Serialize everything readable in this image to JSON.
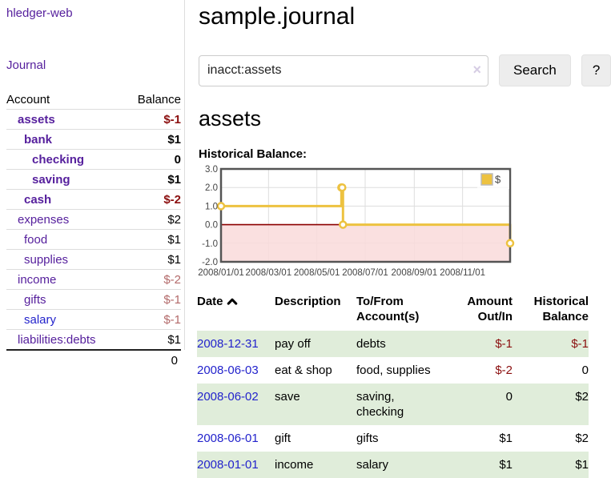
{
  "app_title": "hledger-web",
  "sidebar": {
    "journal_link": "Journal",
    "accounts": {
      "header_account": "Account",
      "header_balance": "Balance",
      "rows": [
        {
          "name": "assets",
          "balance": "$-1"
        },
        {
          "name": "bank",
          "balance": "$1"
        },
        {
          "name": "checking",
          "balance": "0"
        },
        {
          "name": "saving",
          "balance": "$1"
        },
        {
          "name": "cash",
          "balance": "$-2"
        },
        {
          "name": "expenses",
          "balance": "$2"
        },
        {
          "name": "food",
          "balance": "$1"
        },
        {
          "name": "supplies",
          "balance": "$1"
        },
        {
          "name": "income",
          "balance": "$-2"
        },
        {
          "name": "gifts",
          "balance": "$-1"
        },
        {
          "name": "salary",
          "balance": "$-1"
        },
        {
          "name": "liabilities:debts",
          "balance": "$1"
        }
      ],
      "total": "0"
    }
  },
  "main": {
    "title": "sample.journal",
    "search": {
      "value": "inacct:assets",
      "clear_icon": "×",
      "search_button": "Search",
      "help_button": "?"
    },
    "account_heading": "assets"
  },
  "chart_data": {
    "type": "line",
    "step": true,
    "title": "Historical Balance:",
    "x": [
      "2008/01/01",
      "2008/06/01",
      "2008/06/02",
      "2008/06/03",
      "2008/12/31"
    ],
    "series": [
      {
        "name": "$",
        "color": "#edc240",
        "values": [
          1,
          2,
          2,
          0,
          -1
        ]
      }
    ],
    "x_ticks": [
      "2008/01/01",
      "2008/03/01",
      "2008/05/01",
      "2008/07/01",
      "2008/09/01",
      "2008/11/01"
    ],
    "y_ticks": [
      3.0,
      2.0,
      1.0,
      0.0,
      -1.0,
      -2.0
    ],
    "ylim": [
      -2,
      3
    ],
    "grid": true,
    "legend_position": "top-right",
    "negative_region_color": "#f9dbdb",
    "zero_line_color": "#8b0000",
    "border_color": "#545454",
    "grid_color": "#dddddd",
    "tick_label_color": "#444444"
  },
  "register": {
    "headers": {
      "date": "Date",
      "description": "Description",
      "account_line1": "To/From",
      "account_line2": "Account(s)",
      "amount_line1": "Amount",
      "amount_line2": "Out/In",
      "balance_line1": "Historical",
      "balance_line2": "Balance"
    },
    "rows": [
      {
        "date": "2008-12-31",
        "description": "pay off",
        "account": "debts",
        "amount": "$-1",
        "balance": "$-1"
      },
      {
        "date": "2008-06-03",
        "description": "eat & shop",
        "account": "food, supplies",
        "amount": "$-2",
        "balance": "0"
      },
      {
        "date": "2008-06-02",
        "description": "save",
        "account": "saving, checking",
        "amount": "0",
        "balance": "$2"
      },
      {
        "date": "2008-06-01",
        "description": "gift",
        "account": "gifts",
        "amount": "$1",
        "balance": "$2"
      },
      {
        "date": "2008-01-01",
        "description": "income",
        "account": "salary",
        "amount": "$1",
        "balance": "$1"
      }
    ]
  },
  "colors": {
    "link_purple": "#56209d",
    "link_blue": "#2323cc",
    "negative_strong": "#8b0f0f",
    "negative_soft": "#b36a6a",
    "row_stripe_green": "#e0edda",
    "series_gold": "#edc240"
  }
}
